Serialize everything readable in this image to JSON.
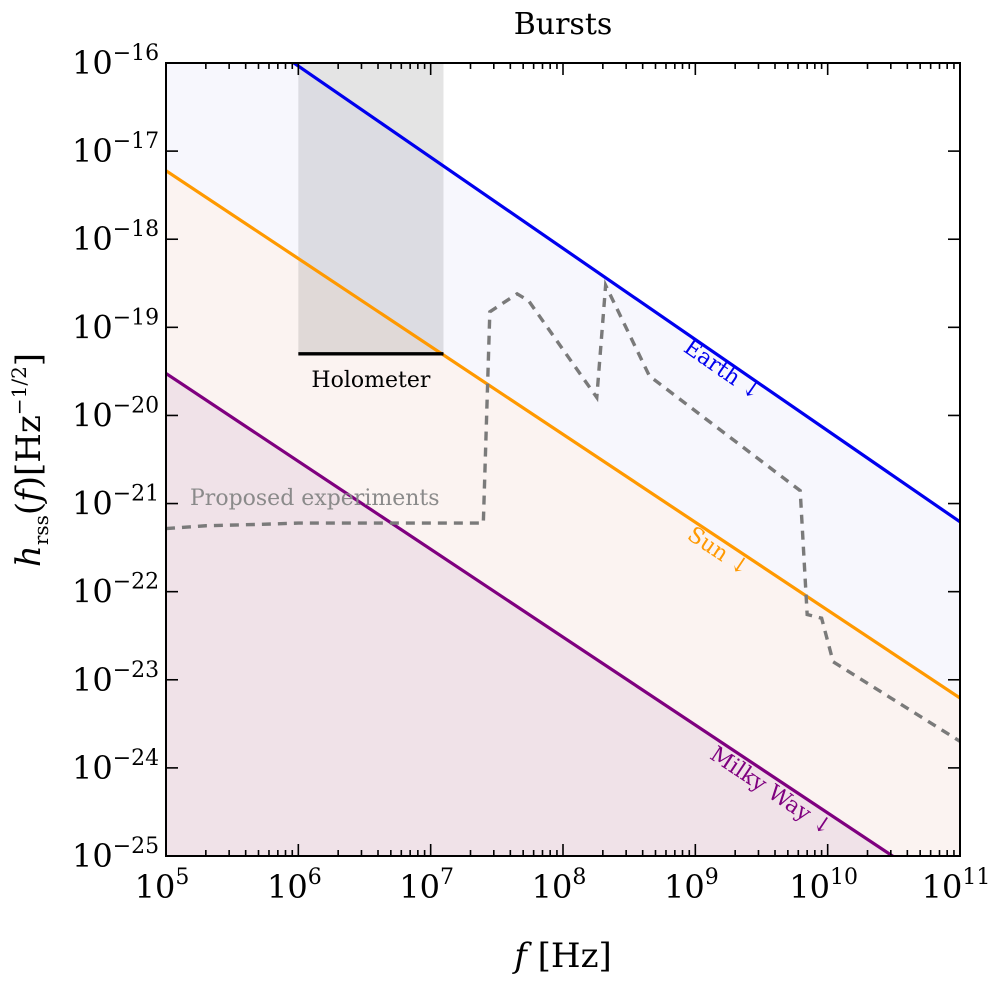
{
  "chart_data": {
    "type": "line",
    "title": "Bursts",
    "xlabel": "f [Hz]",
    "ylabel": "h_rss(f) [Hz^-1/2]",
    "x_scale": "log",
    "y_scale": "log",
    "xlim": [
      100000,
      100000000000
    ],
    "ylim": [
      1e-25,
      1e-16
    ],
    "x_ticks": [
      {
        "value": 100000,
        "base": "10",
        "exp": "5"
      },
      {
        "value": 1000000,
        "base": "10",
        "exp": "6"
      },
      {
        "value": 10000000,
        "base": "10",
        "exp": "7"
      },
      {
        "value": 100000000,
        "base": "10",
        "exp": "8"
      },
      {
        "value": 1000000000,
        "base": "10",
        "exp": "9"
      },
      {
        "value": 10000000000,
        "base": "10",
        "exp": "10"
      },
      {
        "value": 100000000000,
        "base": "10",
        "exp": "11"
      }
    ],
    "y_ticks": [
      {
        "value": 1e-16,
        "base": "10",
        "exp": "−16"
      },
      {
        "value": 1e-17,
        "base": "10",
        "exp": "−17"
      },
      {
        "value": 1e-18,
        "base": "10",
        "exp": "−18"
      },
      {
        "value": 1e-19,
        "base": "10",
        "exp": "−19"
      },
      {
        "value": 1e-20,
        "base": "10",
        "exp": "−20"
      },
      {
        "value": 1e-21,
        "base": "10",
        "exp": "−21"
      },
      {
        "value": 1e-22,
        "base": "10",
        "exp": "−22"
      },
      {
        "value": 1e-23,
        "base": "10",
        "exp": "−23"
      },
      {
        "value": 1e-24,
        "base": "10",
        "exp": "−24"
      },
      {
        "value": 1e-25,
        "base": "10",
        "exp": "−25"
      }
    ],
    "series": [
      {
        "name": "Earth ↓",
        "color": "#0000ee",
        "fill": "#f7f7fd",
        "x": [
          100000,
          100000000000
        ],
        "y": [
          1e-15,
          6.2e-22
        ]
      },
      {
        "name": "Sun ↓",
        "color": "#ff9900",
        "fill": "#fbf3f1",
        "x": [
          100000,
          100000000000
        ],
        "y": [
          6e-18,
          6.2e-24
        ]
      },
      {
        "name": "Milky Way ↓",
        "color": "#7f007f",
        "fill": "#f0e2e8",
        "x": [
          100000,
          100000000000
        ],
        "y": [
          3e-20,
          3.1e-26
        ]
      }
    ],
    "proposed": {
      "label": "Proposed experiments",
      "color": "#7a7a7a",
      "x": [
        100000,
        200000,
        500000,
        1000000,
        2000000,
        5000000,
        10000000,
        25000000,
        28000000,
        45000000,
        55000000,
        180000000,
        210000000,
        450000000,
        6200000000,
        7000000000,
        9000000000,
        11000000000,
        100000000000
      ],
      "y": [
        5.2e-22,
        5.6e-22,
        5.8e-22,
        6e-22,
        6e-22,
        6e-22,
        6e-22,
        6e-22,
        1.5e-19,
        2.4e-19,
        2e-19,
        1.6e-20,
        3e-19,
        2.8e-20,
        1.4e-21,
        5.5e-23,
        5e-23,
        1.6e-23,
        2e-24
      ]
    },
    "holometer": {
      "label": "Holometer",
      "band_color": "#e3e3e3",
      "band_x": [
        1000000,
        12500000
      ],
      "line_y": 5e-20,
      "line_color": "#000000"
    }
  }
}
